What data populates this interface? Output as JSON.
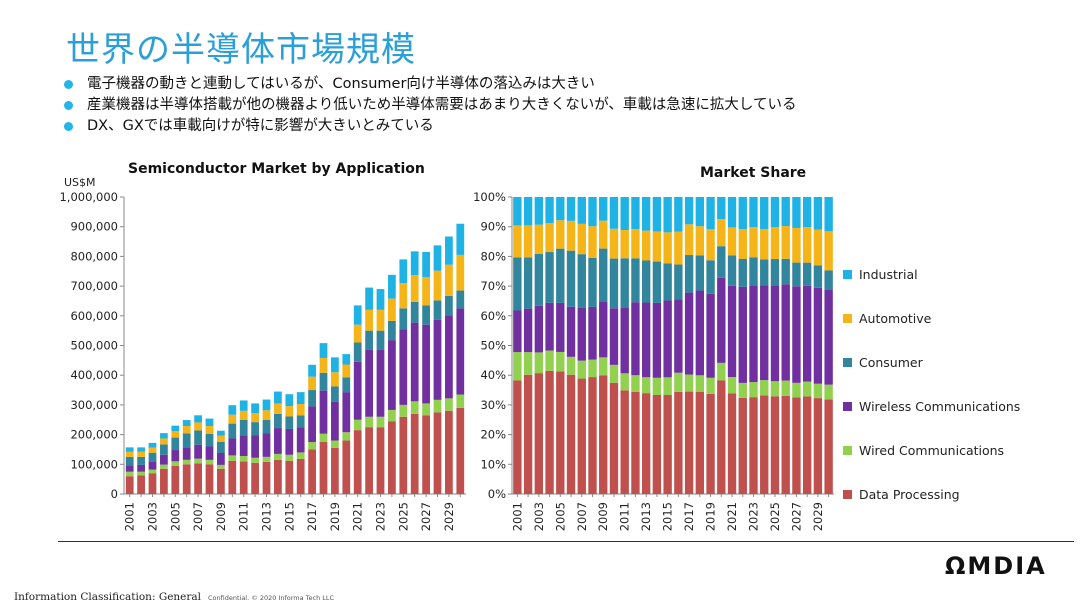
{
  "slide": {
    "title": "世界の半導体市場規模",
    "bullets": [
      "電子機器の動きと連動してはいるが、Consumer向け半導体の落込みは大きい",
      "産業機器は半導体搭載が他の機器より低いため半導体需要はあまり大きくないが、車載は急速に拡大している",
      "DX、GXでは車載向けが特に影響が大きいとみている"
    ]
  },
  "footer": {
    "logo": "ΩMDIA",
    "classification": "Information Classification: General",
    "confidential": "Confidential. © 2020 Informa Tech LLC"
  },
  "legend": [
    {
      "label": "Industrial",
      "color": "#1fb3e5"
    },
    {
      "label": "Automotive",
      "color": "#f5b417"
    },
    {
      "label": "Consumer",
      "color": "#31859c"
    },
    {
      "label": "Wireless Communications",
      "color": "#7030a0"
    },
    {
      "label": "Wired Communications",
      "color": "#92d050"
    },
    {
      "label": "Data Processing",
      "color": "#c0504d"
    }
  ],
  "chart_data": [
    {
      "type": "bar",
      "stacked": true,
      "title": "Semiconductor Market by Application",
      "unit": "US$M",
      "ylim": [
        0,
        1000000
      ],
      "yticks": [
        0,
        100000,
        200000,
        300000,
        400000,
        500000,
        600000,
        700000,
        800000,
        900000,
        1000000
      ],
      "ytick_labels": [
        "0",
        "100,000",
        "200,000",
        "300,000",
        "400,000",
        "500,000",
        "600,000",
        "700,000",
        "800,000",
        "900,000",
        "1,000,000"
      ],
      "categories": [
        "2001",
        "2002",
        "2003",
        "2004",
        "2005",
        "2006",
        "2007",
        "2008",
        "2009",
        "2010",
        "2011",
        "2012",
        "2013",
        "2014",
        "2015",
        "2016",
        "2017",
        "2018",
        "2019",
        "2020",
        "2021",
        "2022",
        "2023",
        "2024",
        "2025",
        "2026",
        "2027",
        "2028",
        "2029",
        "2030"
      ],
      "xtick_labels": [
        "2001",
        "",
        "2003",
        "",
        "2005",
        "",
        "2007",
        "",
        "2009",
        "",
        "2011",
        "",
        "2013",
        "",
        "2015",
        "",
        "2017",
        "",
        "2019",
        "",
        "2021",
        "",
        "2023",
        "",
        "2025",
        "",
        "2027",
        "",
        "2029",
        ""
      ],
      "grid": false,
      "series": [
        {
          "name": "Data Processing",
          "color": "#c0504d",
          "values": [
            60000,
            63000,
            70000,
            85000,
            95000,
            100000,
            103000,
            100000,
            85000,
            112000,
            110000,
            105000,
            108000,
            115000,
            112000,
            118000,
            150000,
            175000,
            155000,
            180000,
            215000,
            225000,
            225000,
            245000,
            260000,
            270000,
            265000,
            275000,
            280000,
            290000
          ]
        },
        {
          "name": "Wired Communications",
          "color": "#92d050",
          "values": [
            15000,
            12000,
            12000,
            14000,
            15000,
            15000,
            16000,
            15000,
            13000,
            18000,
            18000,
            17000,
            17000,
            20000,
            20000,
            22000,
            25000,
            28000,
            25000,
            28000,
            35000,
            35000,
            35000,
            38000,
            40000,
            42000,
            40000,
            42000,
            42000,
            45000
          ]
        },
        {
          "name": "Wireless Communications",
          "color": "#7030a0",
          "values": [
            22000,
            23000,
            27000,
            33000,
            38000,
            42000,
            47000,
            45000,
            40000,
            57000,
            70000,
            75000,
            80000,
            87000,
            87000,
            85000,
            120000,
            145000,
            130000,
            135000,
            195000,
            225000,
            225000,
            235000,
            255000,
            265000,
            265000,
            270000,
            280000,
            290000
          ]
        },
        {
          "name": "Consumer",
          "color": "#31859c",
          "values": [
            28000,
            27000,
            30000,
            35000,
            42000,
            47000,
            48000,
            42000,
            38000,
            50000,
            52000,
            45000,
            45000,
            48000,
            42000,
            40000,
            55000,
            60000,
            52000,
            50000,
            65000,
            65000,
            65000,
            65000,
            70000,
            70000,
            65000,
            65000,
            65000,
            60000
          ]
        },
        {
          "name": "Automotive",
          "color": "#f5b417",
          "values": [
            17000,
            17000,
            17000,
            20000,
            22000,
            25000,
            27000,
            27000,
            20000,
            30000,
            30000,
            30000,
            32000,
            35000,
            35000,
            38000,
            45000,
            50000,
            48000,
            43000,
            60000,
            70000,
            70000,
            75000,
            85000,
            90000,
            95000,
            100000,
            105000,
            120000
          ]
        },
        {
          "name": "Industrial",
          "color": "#1fb3e5",
          "values": [
            15000,
            15000,
            16000,
            18000,
            18000,
            20000,
            24000,
            25000,
            17000,
            32000,
            35000,
            33000,
            36000,
            40000,
            40000,
            40000,
            40000,
            50000,
            50000,
            35000,
            65000,
            75000,
            70000,
            80000,
            80000,
            80000,
            85000,
            85000,
            95000,
            105000
          ]
        }
      ]
    },
    {
      "type": "bar",
      "stacked": true,
      "normalized": true,
      "title": "Market Share",
      "ylim": [
        0,
        100
      ],
      "yticks": [
        0,
        10,
        20,
        30,
        40,
        50,
        60,
        70,
        80,
        90,
        100
      ],
      "ytick_labels": [
        "0%",
        "10%",
        "20%",
        "30%",
        "40%",
        "50%",
        "60%",
        "70%",
        "80%",
        "90%",
        "100%"
      ],
      "categories": [
        "2001",
        "2002",
        "2003",
        "2004",
        "2005",
        "2006",
        "2007",
        "2008",
        "2009",
        "2010",
        "2011",
        "2012",
        "2013",
        "2014",
        "2015",
        "2016",
        "2017",
        "2018",
        "2019",
        "2020",
        "2021",
        "2022",
        "2023",
        "2024",
        "2025",
        "2026",
        "2027",
        "2028",
        "2029",
        "2030"
      ],
      "xtick_labels": [
        "2001",
        "",
        "2003",
        "",
        "2005",
        "",
        "2007",
        "",
        "2009",
        "",
        "2011",
        "",
        "2013",
        "",
        "2015",
        "",
        "2017",
        "",
        "2019",
        "",
        "2021",
        "",
        "2023",
        "",
        "2025",
        "",
        "2027",
        "",
        "2029",
        ""
      ],
      "grid": false,
      "series_source": "derived from left chart values as percent of yearly total"
    }
  ]
}
